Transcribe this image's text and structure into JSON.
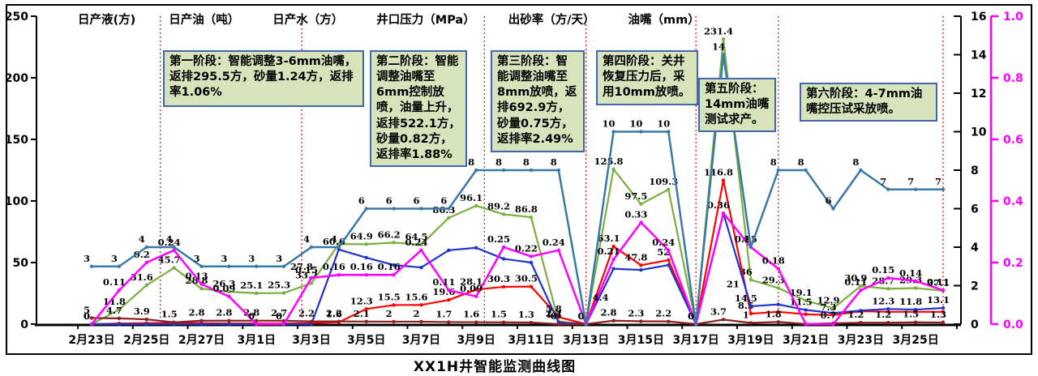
{
  "chart_data": {
    "type": "line",
    "title": "XX1H井智能监测曲线图",
    "axes": {
      "left": {
        "min": 0,
        "max": 250,
        "step": 50,
        "ticks": [
          "0",
          "50",
          "100",
          "150",
          "200",
          "250"
        ]
      },
      "right1": {
        "min": 0,
        "max": 16,
        "step": 2,
        "ticks": [
          "0",
          "2",
          "4",
          "6",
          "8",
          "10",
          "12",
          "14",
          "16"
        ]
      },
      "right2": {
        "min": 0,
        "max": 1.0,
        "step": 0.2,
        "ticks": [
          "0.0",
          "0.2",
          "0.4",
          "0.6",
          "0.8",
          "1.0"
        ],
        "color": "#ff00ff"
      }
    },
    "days": [
      "2月23日",
      "2月24日",
      "2月25日",
      "2月26日",
      "2月27日",
      "2月28日",
      "3月1日",
      "3月2日",
      "3月3日",
      "3月4日",
      "3月5日",
      "3月6日",
      "3月7日",
      "3月8日",
      "3月9日",
      "3月10日",
      "3月11日",
      "3月12日",
      "3月13日",
      "3月14日",
      "3月15日",
      "3月16日",
      "3月17日",
      "3月18日",
      "3月19日",
      "3月20日",
      "3月21日",
      "3月22日",
      "3月23日",
      "3月24日",
      "3月25日",
      "3月26日"
    ],
    "x_labels_shown_every": 2,
    "series": [
      {
        "name": "日产液(方)",
        "color": "#7cae3e",
        "axis": "left",
        "values": [
          0,
          11.8,
          31.6,
          45.7,
          28.8,
          26.3,
          25.1,
          25.3,
          33.2,
          65,
          64.9,
          66.2,
          64.5,
          86.3,
          96.1,
          89.2,
          86.8,
          2.2,
          0,
          125.8,
          97.5,
          109.3,
          0,
          231.4,
          36,
          29.3,
          19.1,
          12.9,
          30.9,
          28.7,
          29.3,
          27.1
        ],
        "labels": [
          "0",
          "11.8",
          "31.6",
          "45.7",
          "28.8",
          "26.3",
          "25.1",
          "25.3",
          "33.2",
          null,
          "64.9",
          "66.2",
          "64.5",
          "86.3",
          "96.1",
          "89.2",
          "86.8",
          "2.2",
          "0",
          "125.8",
          "97.5",
          "109.3",
          null,
          "231.4",
          "36",
          "29.3",
          "19.1",
          "12.9",
          "30.9",
          "28.7",
          "29.3",
          "27.1"
        ]
      },
      {
        "name": "日产油（吨）",
        "color": "#ff0000",
        "axis": "left",
        "values": [
          0,
          0.5,
          0.8,
          1,
          0.8,
          0.6,
          0.5,
          0.5,
          0.8,
          1.6,
          12.3,
          15.5,
          15.6,
          19.6,
          28.1,
          30.3,
          30.5,
          5.8,
          0,
          63.1,
          47.8,
          52,
          0,
          116.8,
          8.5,
          10,
          8,
          7.3,
          10.5,
          10,
          10,
          10
        ],
        "labels": [
          "0",
          null,
          null,
          null,
          null,
          null,
          null,
          null,
          null,
          "1.6",
          "12.3",
          "15.5",
          "15.6",
          "19.6",
          "28.1",
          "30.3",
          "30.5",
          "5.8",
          null,
          "63.1",
          "47.8",
          "52",
          null,
          "116.8",
          "8.5",
          null,
          null,
          "7.3",
          null,
          null,
          null,
          null
        ]
      },
      {
        "name": "日产水（方）",
        "color": "#2233cc",
        "axis": "left",
        "values": [
          0,
          0,
          0,
          0,
          0,
          0,
          0,
          0,
          0,
          60.6,
          54,
          48,
          46,
          60,
          62,
          53,
          50,
          1.4,
          0,
          45,
          44,
          48,
          0,
          90,
          14.5,
          16,
          11.5,
          9,
          11,
          12.3,
          11.8,
          13.1
        ],
        "labels": [
          null,
          null,
          null,
          null,
          null,
          null,
          null,
          null,
          null,
          "60.6",
          null,
          null,
          null,
          null,
          null,
          null,
          null,
          "1.4",
          null,
          null,
          null,
          null,
          null,
          null,
          "14.5",
          null,
          "11.5",
          null,
          null,
          "12.3",
          "11.8",
          "13.1"
        ]
      },
      {
        "name": "井口压力（MPa）",
        "color": "#8b2020",
        "axis": "left",
        "values": [
          5,
          4.7,
          3.9,
          1.5,
          2.8,
          2.8,
          2.8,
          2.7,
          2.2,
          2.2,
          2.1,
          2,
          2,
          1.7,
          1.6,
          1.5,
          1.3,
          0,
          0,
          2.8,
          2.3,
          2.2,
          0,
          3.7,
          1,
          1.8,
          0.1,
          0.7,
          1.2,
          1.2,
          1.5,
          1.3
        ],
        "labels": [
          "5",
          "4.7",
          "3.9",
          "1.5",
          "2.8",
          "2.8",
          "2.8",
          "2.7",
          "2.2",
          "2.2",
          "2.1",
          "2",
          "2",
          "1.7",
          "1.6",
          "1.5",
          "1.3",
          "0",
          "0",
          "2.8",
          "2.3",
          "2.2",
          "0",
          "3.7",
          "1",
          "1.8",
          null,
          "0.7",
          "1.2",
          "1.2",
          "1.5",
          "1.3"
        ]
      },
      {
        "name": "出砂率（方/天）",
        "color": "#ff00ff",
        "axis": "right2",
        "values": [
          0,
          0.11,
          0.2,
          0.24,
          0.13,
          0.09,
          0,
          0,
          0.15,
          0.16,
          0.16,
          0.16,
          0.24,
          0.11,
          0.09,
          0.25,
          0.22,
          0.24,
          0,
          0.21,
          0.33,
          0.24,
          0,
          0.36,
          0.25,
          0.18,
          0,
          0,
          0.11,
          0.15,
          0.14,
          0.11
        ],
        "labels": [
          "0",
          "0.11",
          "0.2",
          "0.24",
          "0.13",
          "0.09",
          "0",
          "0",
          "0.15",
          "0.16",
          "0.16",
          "0.16",
          "0.24",
          "0.11",
          "0.09",
          "0.25",
          "0.22",
          "0.24",
          "0",
          "0.21",
          "0.33",
          "0.24",
          "0",
          "0.36",
          "0.25",
          "0.18",
          null,
          null,
          "0.11",
          "0.15",
          "0.14",
          "0.11"
        ]
      },
      {
        "name": "油嘴（mm）",
        "color": "#3879a8",
        "axis": "right1",
        "values": [
          3,
          3,
          4,
          4,
          3,
          3,
          3,
          3,
          4,
          4,
          6,
          6,
          6,
          6,
          8,
          8,
          8,
          8,
          0,
          10,
          10,
          10,
          0,
          14,
          4,
          8,
          8,
          6,
          8,
          7,
          7,
          7
        ],
        "labels": [
          "3",
          "3",
          "4",
          "4",
          "3",
          "3",
          "3",
          "3",
          "4",
          "4",
          "6",
          "6",
          "6",
          "6",
          "8",
          "8",
          "8",
          "8",
          null,
          "10",
          "10",
          "10",
          null,
          "14",
          "4",
          "8",
          "8",
          "6",
          "8",
          "7",
          "7",
          "7"
        ]
      }
    ],
    "extra_labels": [
      {
        "text": "21",
        "day": 24,
        "v": 30,
        "dx": -22
      },
      {
        "text": "4.4",
        "day": 19,
        "v": 19,
        "dx": -16
      },
      {
        "text": "27.8",
        "day": 9,
        "v": 44,
        "dx": -46
      }
    ],
    "stage_lines": [
      2.5,
      7.65,
      14.3,
      18,
      22,
      25,
      31
    ],
    "stages": [
      "第一阶段：智能调整3-6mm油嘴，返排295.5方，砂量1.24方，返排率1.06%",
      "第二阶段：智能调整油嘴至6mm控制放喷，油量上升，返排522.1方，砂量0.82方，返排率1.88%",
      "第三阶段：智能调整油嘴至8mm放喷，返排692.9方，砂量0.75方，返排率2.49%",
      "第四阶段：关井恢复压力后，采用10mm放喷。",
      "第五阶段：14mm油嘴测试求产。",
      "第六阶段：4-7mm油嘴控压试采放喷。"
    ],
    "layout": {
      "legend_position": "top",
      "grid": false
    }
  }
}
